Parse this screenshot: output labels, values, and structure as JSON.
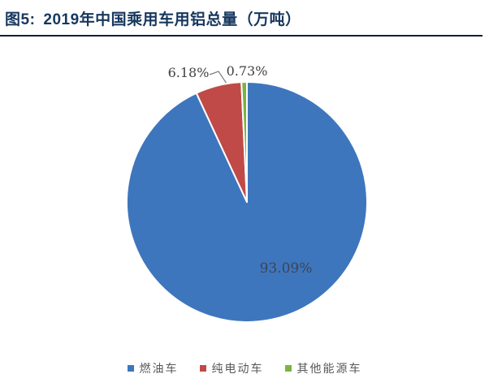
{
  "figure": {
    "label": "图5:",
    "title": "2019年中国乘用车用铝总量（万吨）"
  },
  "colors": {
    "title_text": "#17375E",
    "underline": "#121f38",
    "data_label": "#404040",
    "legend_text": "#595959",
    "leader_line": "#7f7f7f"
  },
  "chart_data": {
    "type": "pie",
    "title": "2019年中国乘用车用铝总量（万吨）",
    "categories": [
      "燃油车",
      "纯电动车",
      "其他能源车"
    ],
    "values": [
      93.09,
      6.18,
      0.73
    ],
    "labels": [
      "93.09%",
      "6.18%",
      "0.73%"
    ],
    "colors": [
      "#3E76BD",
      "#C04A47",
      "#7CB43F"
    ],
    "start_angle_deg": 0,
    "direction": "clockwise",
    "slice_border_color": "#ffffff",
    "legend_position": "bottom",
    "label_style": "percent"
  }
}
